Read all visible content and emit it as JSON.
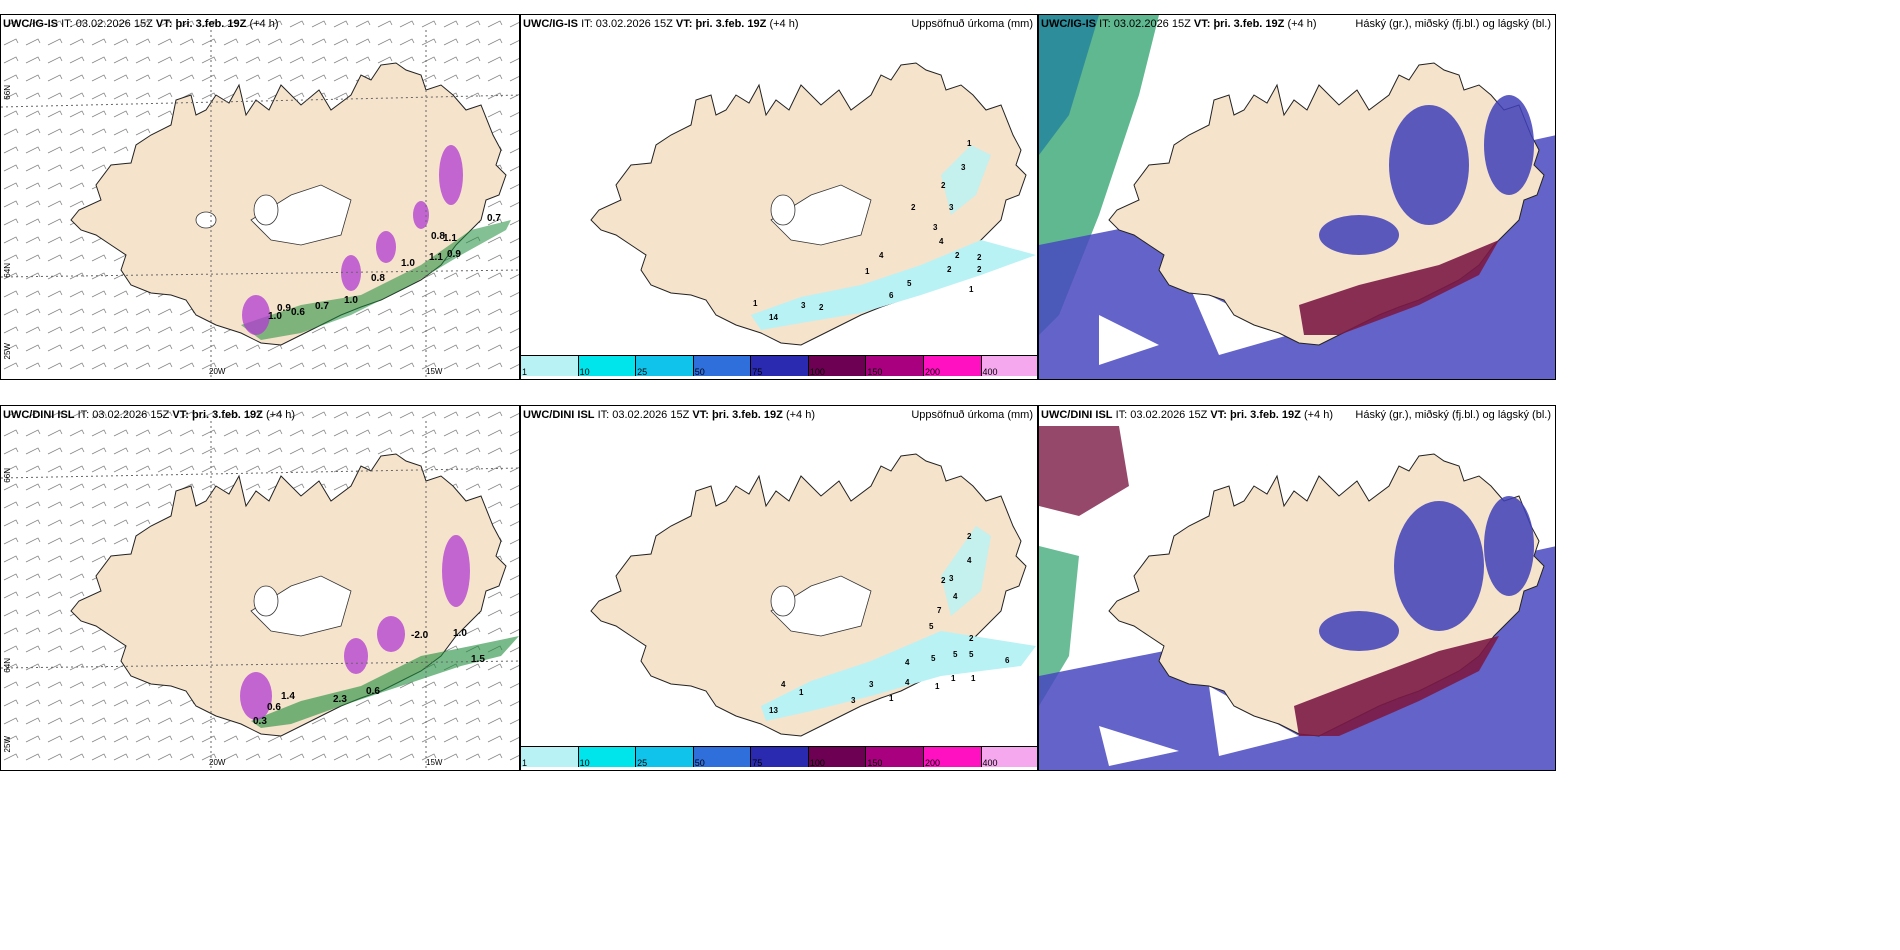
{
  "panels_top": {
    "left": {
      "model": "UWC/IG-IS",
      "it_label": "IT:",
      "it": "03.02.2026 15Z",
      "vt_label": "VT:",
      "vt": "þri. 3.feb. 19Z",
      "lead": "(+4 h)"
    },
    "middle": {
      "model": "UWC/IG-IS",
      "it_label": "IT:",
      "it": "03.02.2026 15Z",
      "vt_label": "VT:",
      "vt": "þri. 3.feb. 19Z",
      "lead": "(+4 h)",
      "right_title": "Uppsöfnuð úrkoma (mm)"
    },
    "right": {
      "model": "UWC/IG-IS",
      "it_label": "IT:",
      "it": "03.02.2026 15Z",
      "vt_label": "VT:",
      "vt": "þri. 3.feb. 19Z",
      "lead": "(+4 h)",
      "right_title": "Háský (gr.), miðský (fj.bl.) og lágský (bl.)"
    }
  },
  "panels_bottom": {
    "left": {
      "model": "UWC/DINI ISL",
      "it_label": "IT:",
      "it": "03.02.2026 15Z",
      "vt_label": "VT:",
      "vt": "þri. 3.feb. 19Z",
      "lead": "(+4 h)"
    },
    "middle": {
      "model": "UWC/DINI ISL",
      "it_label": "IT:",
      "it": "03.02.2026 15Z",
      "vt_label": "VT:",
      "vt": "þri. 3.feb. 19Z",
      "lead": "(+4 h)",
      "right_title": "Uppsöfnuð úrkoma (mm)"
    },
    "right": {
      "model": "UWC/DINI ISL",
      "it_label": "IT:",
      "it": "03.02.2026 15Z",
      "vt_label": "VT:",
      "vt": "þri. 3.feb. 19Z",
      "lead": "(+4 h)",
      "right_title": "Háský (gr.), miðský (fj.bl.) og lágský (bl.)"
    }
  },
  "axis_labels": {
    "lat66": "66N",
    "lat64": "64N",
    "lon25": "25W",
    "lon20": "20W",
    "lon15": "15W"
  },
  "precip_legend": {
    "ticks": [
      "1",
      "10",
      "25",
      "50",
      "75",
      "100",
      "150",
      "200",
      "400"
    ],
    "colors": [
      "#b8f2f5",
      "#00e5ec",
      "#10c3ea",
      "#2e6fdc",
      "#2a2ab0",
      "#6e0054",
      "#a8007e",
      "#ff10c0",
      "#f6a8ee"
    ]
  },
  "colors": {
    "land": "#f5e3cc",
    "precip_cyan": "#b8f2f5",
    "green": "#1e8c3a",
    "purple": "#b23bd3",
    "cloud_blue": "#4848c0",
    "cloud_red": "#7c1a45"
  },
  "top_left_values": [
    "0.7",
    "0.8",
    "1.1",
    "1.0",
    "1.1",
    "0.9",
    "1.0",
    "0.8",
    "0.7",
    "0.6",
    "1.0",
    "0.9"
  ],
  "bottom_left_values": [
    "-2.0",
    "1.0",
    "0.6",
    "1.4",
    "0.6",
    "1.5",
    "2.3",
    "0.3"
  ],
  "top_mid_values": [
    "1",
    "3",
    "2",
    "3",
    "2",
    "3",
    "4",
    "2",
    "2",
    "2",
    "2",
    "1",
    "5",
    "6",
    "3",
    "2",
    "1",
    "4",
    "14",
    "1"
  ],
  "bottom_mid_values": [
    "2",
    "4",
    "3",
    "4",
    "2",
    "7",
    "5",
    "5",
    "2",
    "5",
    "6",
    "5",
    "4",
    "3",
    "1",
    "4",
    "4",
    "1",
    "1",
    "3",
    "1",
    "13",
    "1"
  ]
}
